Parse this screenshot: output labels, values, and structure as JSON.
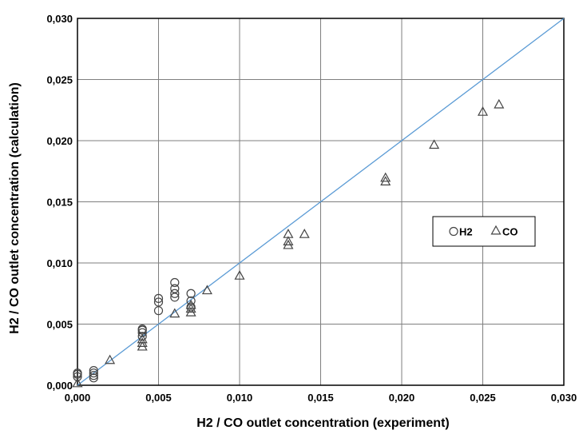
{
  "chart_data": {
    "type": "scatter",
    "title": "",
    "xlabel": "H2 / CO outlet concentration (experiment)",
    "ylabel": "H2 / CO outlet concentration (calculation)",
    "xlim": [
      0,
      0.03
    ],
    "ylim": [
      0,
      0.03
    ],
    "x_ticks": [
      "0,000",
      "0,005",
      "0,010",
      "0,015",
      "0,020",
      "0,025",
      "0,030"
    ],
    "y_ticks": [
      "0,000",
      "0,005",
      "0,010",
      "0,015",
      "0,020",
      "0,025",
      "0,030"
    ],
    "tick_values": [
      0,
      0.005,
      0.01,
      0.015,
      0.02,
      0.025,
      0.03
    ],
    "grid": true,
    "legend_position": "right",
    "reference_line": {
      "from": [
        0,
        0
      ],
      "to": [
        0.03,
        0.03
      ],
      "color": "#5B9BD5"
    },
    "series": [
      {
        "name": "H2",
        "marker": "circle",
        "points": [
          [
            0.0,
            0.0007
          ],
          [
            0.0,
            0.0009
          ],
          [
            0.0,
            0.001
          ],
          [
            0.001,
            0.0006
          ],
          [
            0.001,
            0.0008
          ],
          [
            0.001,
            0.001
          ],
          [
            0.001,
            0.0012
          ],
          [
            0.004,
            0.004
          ],
          [
            0.004,
            0.0043
          ],
          [
            0.004,
            0.0045
          ],
          [
            0.004,
            0.0046
          ],
          [
            0.005,
            0.0061
          ],
          [
            0.005,
            0.0068
          ],
          [
            0.005,
            0.0071
          ],
          [
            0.006,
            0.0072
          ],
          [
            0.006,
            0.0075
          ],
          [
            0.006,
            0.0079
          ],
          [
            0.006,
            0.0084
          ],
          [
            0.007,
            0.0064
          ],
          [
            0.007,
            0.0069
          ],
          [
            0.007,
            0.0075
          ]
        ]
      },
      {
        "name": "CO",
        "marker": "triangle",
        "points": [
          [
            0.0,
            0.0001
          ],
          [
            0.002,
            0.002
          ],
          [
            0.004,
            0.0031
          ],
          [
            0.004,
            0.0034
          ],
          [
            0.004,
            0.0037
          ],
          [
            0.006,
            0.0058
          ],
          [
            0.007,
            0.0059
          ],
          [
            0.007,
            0.0062
          ],
          [
            0.007,
            0.0065
          ],
          [
            0.008,
            0.0077
          ],
          [
            0.01,
            0.0089
          ],
          [
            0.013,
            0.0114
          ],
          [
            0.013,
            0.0117
          ],
          [
            0.013,
            0.0123
          ],
          [
            0.014,
            0.0123
          ],
          [
            0.019,
            0.0166
          ],
          [
            0.019,
            0.0169
          ],
          [
            0.022,
            0.0196
          ],
          [
            0.025,
            0.0223
          ],
          [
            0.026,
            0.0229
          ]
        ]
      }
    ]
  }
}
